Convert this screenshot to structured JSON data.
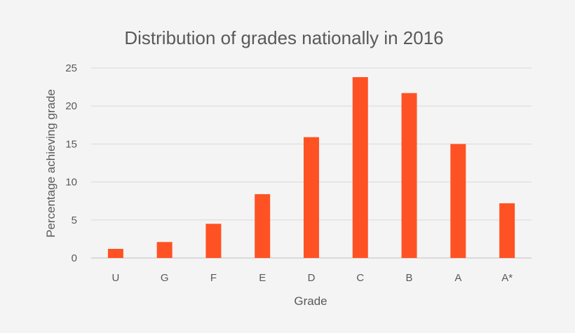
{
  "chart_data": {
    "type": "bar",
    "title": "Distribution of grades nationally in 2016",
    "xlabel": "Grade",
    "ylabel": "Percentage achieving grade",
    "categories": [
      "U",
      "G",
      "F",
      "E",
      "D",
      "C",
      "B",
      "A",
      "A*"
    ],
    "values": [
      1.2,
      2.1,
      4.5,
      8.4,
      15.9,
      23.8,
      21.7,
      15.0,
      7.2
    ],
    "ylim": [
      0,
      25
    ],
    "yticks": [
      0,
      5,
      10,
      15,
      20,
      25
    ],
    "grid": true,
    "legend": "none",
    "bar_color": "#ff5224"
  }
}
